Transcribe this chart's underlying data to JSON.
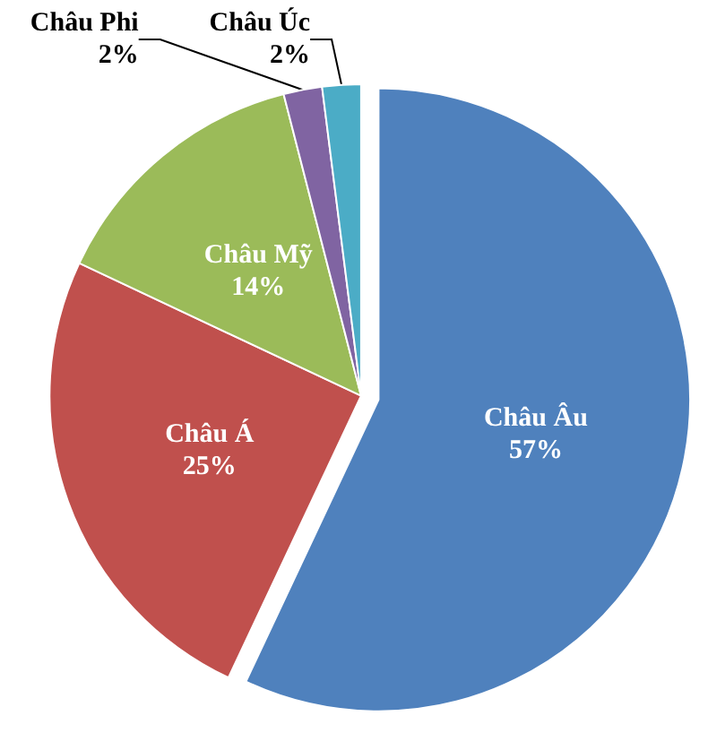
{
  "chart_data": {
    "type": "pie",
    "categories": [
      "Châu Âu",
      "Châu Á",
      "Châu Mỹ",
      "Châu Phi",
      "Châu Úc"
    ],
    "values": [
      57,
      25,
      14,
      2,
      2
    ],
    "value_labels": [
      "57%",
      "25%",
      "14%",
      "2%",
      "2%"
    ],
    "colors": [
      "#4f81bd",
      "#c0504d",
      "#9bbb59",
      "#8064a2",
      "#4bacc6"
    ],
    "legend": false
  }
}
